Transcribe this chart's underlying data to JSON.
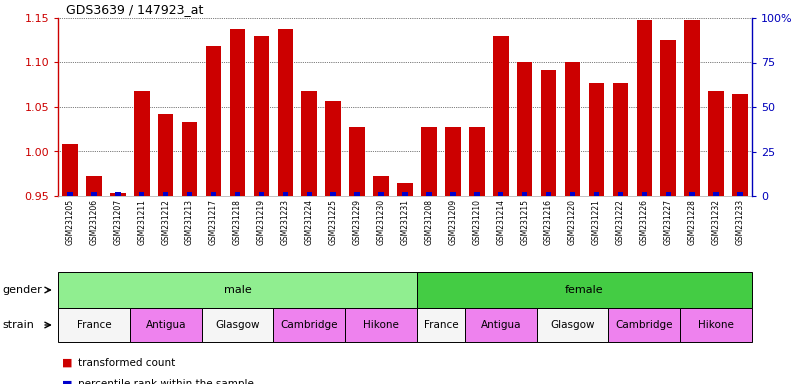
{
  "title": "GDS3639 / 147923_at",
  "samples": [
    "GSM231205",
    "GSM231206",
    "GSM231207",
    "GSM231211",
    "GSM231212",
    "GSM231213",
    "GSM231217",
    "GSM231218",
    "GSM231219",
    "GSM231223",
    "GSM231224",
    "GSM231225",
    "GSM231229",
    "GSM231230",
    "GSM231231",
    "GSM231208",
    "GSM231209",
    "GSM231210",
    "GSM231214",
    "GSM231215",
    "GSM231216",
    "GSM231220",
    "GSM231221",
    "GSM231222",
    "GSM231226",
    "GSM231227",
    "GSM231228",
    "GSM231232",
    "GSM231233"
  ],
  "red_values": [
    1.008,
    0.972,
    0.953,
    1.068,
    1.042,
    1.033,
    1.118,
    1.138,
    1.13,
    1.138,
    1.068,
    1.057,
    1.028,
    0.972,
    0.965,
    1.028,
    1.028,
    1.028,
    1.13,
    1.1,
    1.092,
    1.1,
    1.077,
    1.077,
    1.148,
    1.125,
    1.148,
    1.068,
    1.065
  ],
  "blue_values": [
    2,
    2,
    2,
    2,
    2,
    2,
    2,
    2,
    2,
    2,
    2,
    2,
    2,
    2,
    2,
    2,
    2,
    2,
    2,
    2,
    2,
    2,
    2,
    2,
    2,
    2,
    2,
    2,
    2
  ],
  "ylim_left": [
    0.95,
    1.15
  ],
  "ylim_right": [
    0,
    100
  ],
  "yticks_left": [
    0.95,
    1.0,
    1.05,
    1.1,
    1.15
  ],
  "yticks_right": [
    0,
    25,
    50,
    75,
    100
  ],
  "ytick_labels_right": [
    "0",
    "25",
    "50",
    "75",
    "100%"
  ],
  "gender_groups": [
    {
      "label": "male",
      "start": 0,
      "end": 15,
      "color": "#90EE90"
    },
    {
      "label": "female",
      "start": 15,
      "end": 29,
      "color": "#44CC44"
    }
  ],
  "strain_groups": [
    {
      "label": "France",
      "start": 0,
      "end": 3,
      "color": "#F5F5F5"
    },
    {
      "label": "Antigua",
      "start": 3,
      "end": 6,
      "color": "#EE82EE"
    },
    {
      "label": "Glasgow",
      "start": 6,
      "end": 9,
      "color": "#F5F5F5"
    },
    {
      "label": "Cambridge",
      "start": 9,
      "end": 12,
      "color": "#EE82EE"
    },
    {
      "label": "Hikone",
      "start": 12,
      "end": 15,
      "color": "#EE82EE"
    },
    {
      "label": "France",
      "start": 15,
      "end": 17,
      "color": "#F5F5F5"
    },
    {
      "label": "Antigua",
      "start": 17,
      "end": 20,
      "color": "#EE82EE"
    },
    {
      "label": "Glasgow",
      "start": 20,
      "end": 23,
      "color": "#F5F5F5"
    },
    {
      "label": "Cambridge",
      "start": 23,
      "end": 26,
      "color": "#EE82EE"
    },
    {
      "label": "Hikone",
      "start": 26,
      "end": 29,
      "color": "#EE82EE"
    }
  ],
  "red_color": "#CC0000",
  "blue_color": "#0000CC",
  "bg_color": "#FFFFFF",
  "left_axis_color": "#CC0000",
  "right_axis_color": "#0000BB"
}
